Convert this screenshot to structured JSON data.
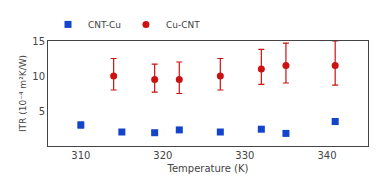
{
  "chart_data": {
    "type": "scatter",
    "xlabel": "Temperature (K)",
    "ylabel": "ITR (10⁻⁴ m²K/W)",
    "series": [
      {
        "name": "CNT-Cu",
        "color": "#1244cc",
        "marker": "square",
        "x": [
          310,
          315,
          319,
          322,
          327,
          332,
          335,
          341
        ],
        "values": [
          3.0,
          2.0,
          1.9,
          2.3,
          2.0,
          2.4,
          1.8,
          3.5
        ],
        "error_lo": [
          0.4,
          0.2,
          0.2,
          0.25,
          0.25,
          0.25,
          0.2,
          0.35
        ],
        "error_hi": [
          0.4,
          0.2,
          0.2,
          0.25,
          0.25,
          0.25,
          0.2,
          0.35
        ]
      },
      {
        "name": "Cu-CNT",
        "color": "#cc1111",
        "marker": "circle",
        "x": [
          314,
          319,
          322,
          327,
          332,
          335,
          341
        ],
        "values": [
          10.0,
          9.5,
          9.5,
          10.0,
          11.0,
          11.5,
          11.5
        ],
        "error_lo": [
          2.0,
          1.8,
          2.0,
          2.0,
          2.2,
          2.5,
          2.8
        ],
        "error_hi": [
          2.5,
          2.2,
          2.5,
          2.5,
          2.8,
          3.2,
          3.5
        ]
      }
    ],
    "xlim": [
      306,
      345
    ],
    "ylim": [
      0,
      15
    ],
    "xticks": [
      310,
      320,
      330,
      340
    ],
    "yticks": [
      5,
      10,
      15
    ],
    "grid": false,
    "legend": "upper left"
  }
}
